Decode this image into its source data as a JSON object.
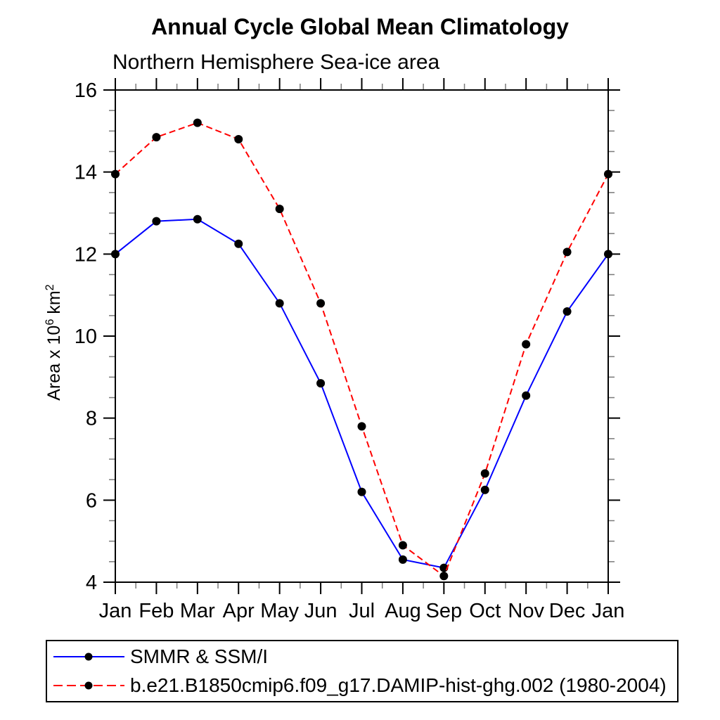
{
  "chart_data": {
    "type": "line",
    "title": "Annual Cycle Global Mean Climatology",
    "subtitle": "Northern Hemisphere Sea-ice area",
    "ylabel": "Area x 10^6 km^2",
    "ylabel_parts": {
      "prefix": "Area x 10",
      "exp1": "6",
      "middle": " km",
      "exp2": "2"
    },
    "categories": [
      "Jan",
      "Feb",
      "Mar",
      "Apr",
      "May",
      "Jun",
      "Jul",
      "Aug",
      "Sep",
      "Oct",
      "Nov",
      "Dec",
      "Jan"
    ],
    "ylim": [
      4,
      16
    ],
    "y_major_ticks": [
      4,
      6,
      8,
      10,
      12,
      14,
      16
    ],
    "y_minor_step": 0.5,
    "x_minor_between_months": true,
    "grid": false,
    "legend_position": "bottom",
    "axis_color": "#000000",
    "series": [
      {
        "name": "SMMR & SSM/I",
        "color": "#0000ff",
        "style": "solid",
        "marker": "circle",
        "marker_color": "#000000",
        "values": [
          12.0,
          12.8,
          12.85,
          12.25,
          10.8,
          8.85,
          6.2,
          4.55,
          4.35,
          6.25,
          8.55,
          10.6,
          12.0
        ]
      },
      {
        "name": "b.e21.B1850cmip6.f09_g17.DAMIP-hist-ghg.002 (1980-2004)",
        "color": "#ff0000",
        "style": "dashed",
        "marker": "circle",
        "marker_color": "#000000",
        "values": [
          13.95,
          14.85,
          15.2,
          14.8,
          13.1,
          10.8,
          7.8,
          4.9,
          4.15,
          6.65,
          9.8,
          12.05,
          13.95
        ]
      }
    ]
  }
}
